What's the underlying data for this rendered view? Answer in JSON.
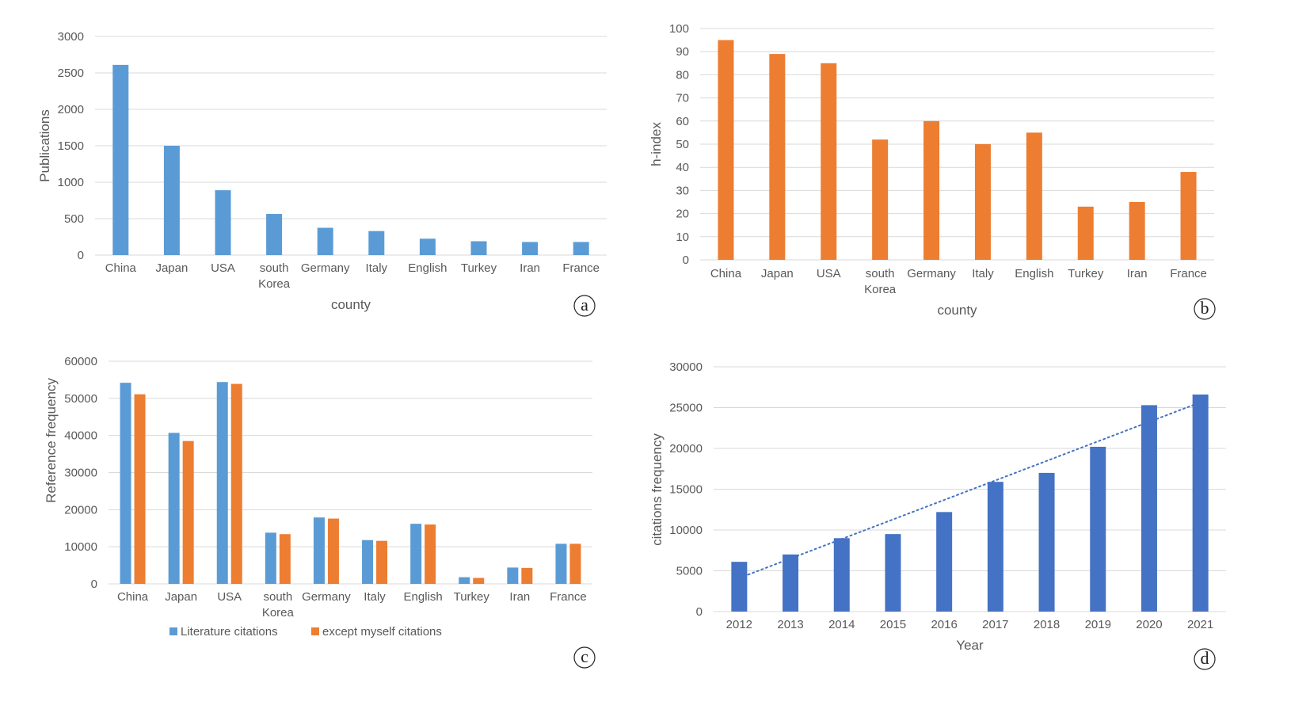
{
  "colors": {
    "blue": "#5b9bd5",
    "orange": "#ed7d31",
    "dark_blue": "#4472c4",
    "grid": "#d9d9d9",
    "text": "#595959"
  },
  "chart_data": [
    {
      "panel": "a",
      "type": "bar",
      "xlabel": "county",
      "ylabel": "Publications",
      "ylim": [
        0,
        3000
      ],
      "yticks": [
        0,
        500,
        1000,
        1500,
        2000,
        2500,
        3000
      ],
      "grid": true,
      "categories": [
        "China",
        "Japan",
        "USA",
        "south Korea",
        "Germany",
        "Italy",
        "English",
        "Turkey",
        "Iran",
        "France"
      ],
      "series": [
        {
          "values": [
            2610,
            1500,
            890,
            565,
            375,
            330,
            225,
            190,
            180,
            180
          ],
          "color": "#5b9bd5"
        }
      ]
    },
    {
      "panel": "b",
      "type": "bar",
      "xlabel": "county",
      "ylabel": "h-index",
      "ylim": [
        0,
        100
      ],
      "yticks": [
        0,
        10,
        20,
        30,
        40,
        50,
        60,
        70,
        80,
        90,
        100
      ],
      "grid": true,
      "categories": [
        "China",
        "Japan",
        "USA",
        "south Korea",
        "Germany",
        "Italy",
        "English",
        "Turkey",
        "Iran",
        "France"
      ],
      "series": [
        {
          "values": [
            95,
            89,
            85,
            52,
            60,
            50,
            55,
            23,
            25,
            38
          ],
          "color": "#ed7d31"
        }
      ]
    },
    {
      "panel": "c",
      "type": "bar",
      "xlabel": "",
      "ylabel": "Reference frequency",
      "ylim": [
        0,
        60000
      ],
      "yticks": [
        0,
        10000,
        20000,
        30000,
        40000,
        50000,
        60000
      ],
      "grid": true,
      "legend": "bottom",
      "categories": [
        "China",
        "Japan",
        "USA",
        "south Korea",
        "Germany",
        "Italy",
        "English",
        "Turkey",
        "Iran",
        "France"
      ],
      "series": [
        {
          "name": "Literature citations",
          "values": [
            54200,
            40700,
            54400,
            13800,
            17900,
            11800,
            16200,
            1800,
            4400,
            10800
          ],
          "color": "#5b9bd5"
        },
        {
          "name": "except myself citations",
          "values": [
            51100,
            38500,
            53900,
            13400,
            17600,
            11600,
            16000,
            1600,
            4300,
            10800
          ],
          "color": "#ed7d31"
        }
      ]
    },
    {
      "panel": "d",
      "type": "bar",
      "xlabel": "Year",
      "ylabel": "citations frequency",
      "ylim": [
        0,
        30000
      ],
      "yticks": [
        0,
        5000,
        10000,
        15000,
        20000,
        25000,
        30000
      ],
      "grid": true,
      "categories": [
        "2012",
        "2013",
        "2014",
        "2015",
        "2016",
        "2017",
        "2018",
        "2019",
        "2020",
        "2021"
      ],
      "series": [
        {
          "values": [
            6100,
            7000,
            9000,
            9500,
            12200,
            15900,
            17000,
            20200,
            25300,
            26600
          ],
          "color": "#4472c4"
        }
      ],
      "trendline": {
        "type": "linear",
        "style": "dotted",
        "color": "#4472c4"
      }
    }
  ]
}
